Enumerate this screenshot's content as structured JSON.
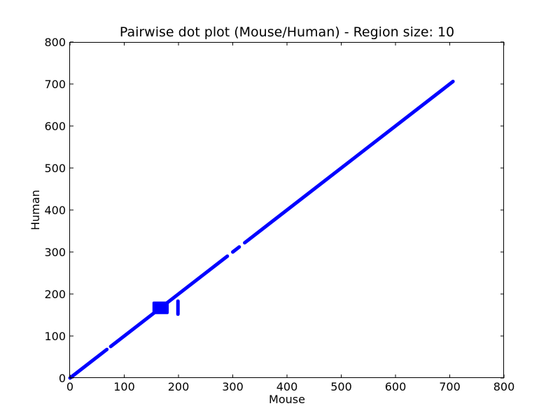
{
  "chart_data": {
    "type": "scatter",
    "title": "Pairwise dot plot (Mouse/Human) - Region size: 10",
    "xlabel": "Mouse",
    "ylabel": "Human",
    "xlim": [
      0,
      800
    ],
    "ylim": [
      0,
      800
    ],
    "xticks": [
      0,
      100,
      200,
      300,
      400,
      500,
      600,
      700,
      800
    ],
    "yticks": [
      0,
      100,
      200,
      300,
      400,
      500,
      600,
      700,
      800
    ],
    "grid": false,
    "color": "#0000ff",
    "segments": [
      {
        "x": [
          0,
          68
        ],
        "y": [
          0,
          68
        ]
      },
      {
        "x": [
          75,
          290
        ],
        "y": [
          75,
          290
        ]
      },
      {
        "x": [
          300,
          312
        ],
        "y": [
          300,
          312
        ]
      },
      {
        "x": [
          322,
          706
        ],
        "y": [
          322,
          706
        ]
      },
      {
        "x": [
          199,
          199
        ],
        "y": [
          152,
          183
        ]
      }
    ],
    "blocks": [
      {
        "x": [
          152,
          182
        ],
        "y": [
          152,
          182
        ]
      }
    ]
  }
}
